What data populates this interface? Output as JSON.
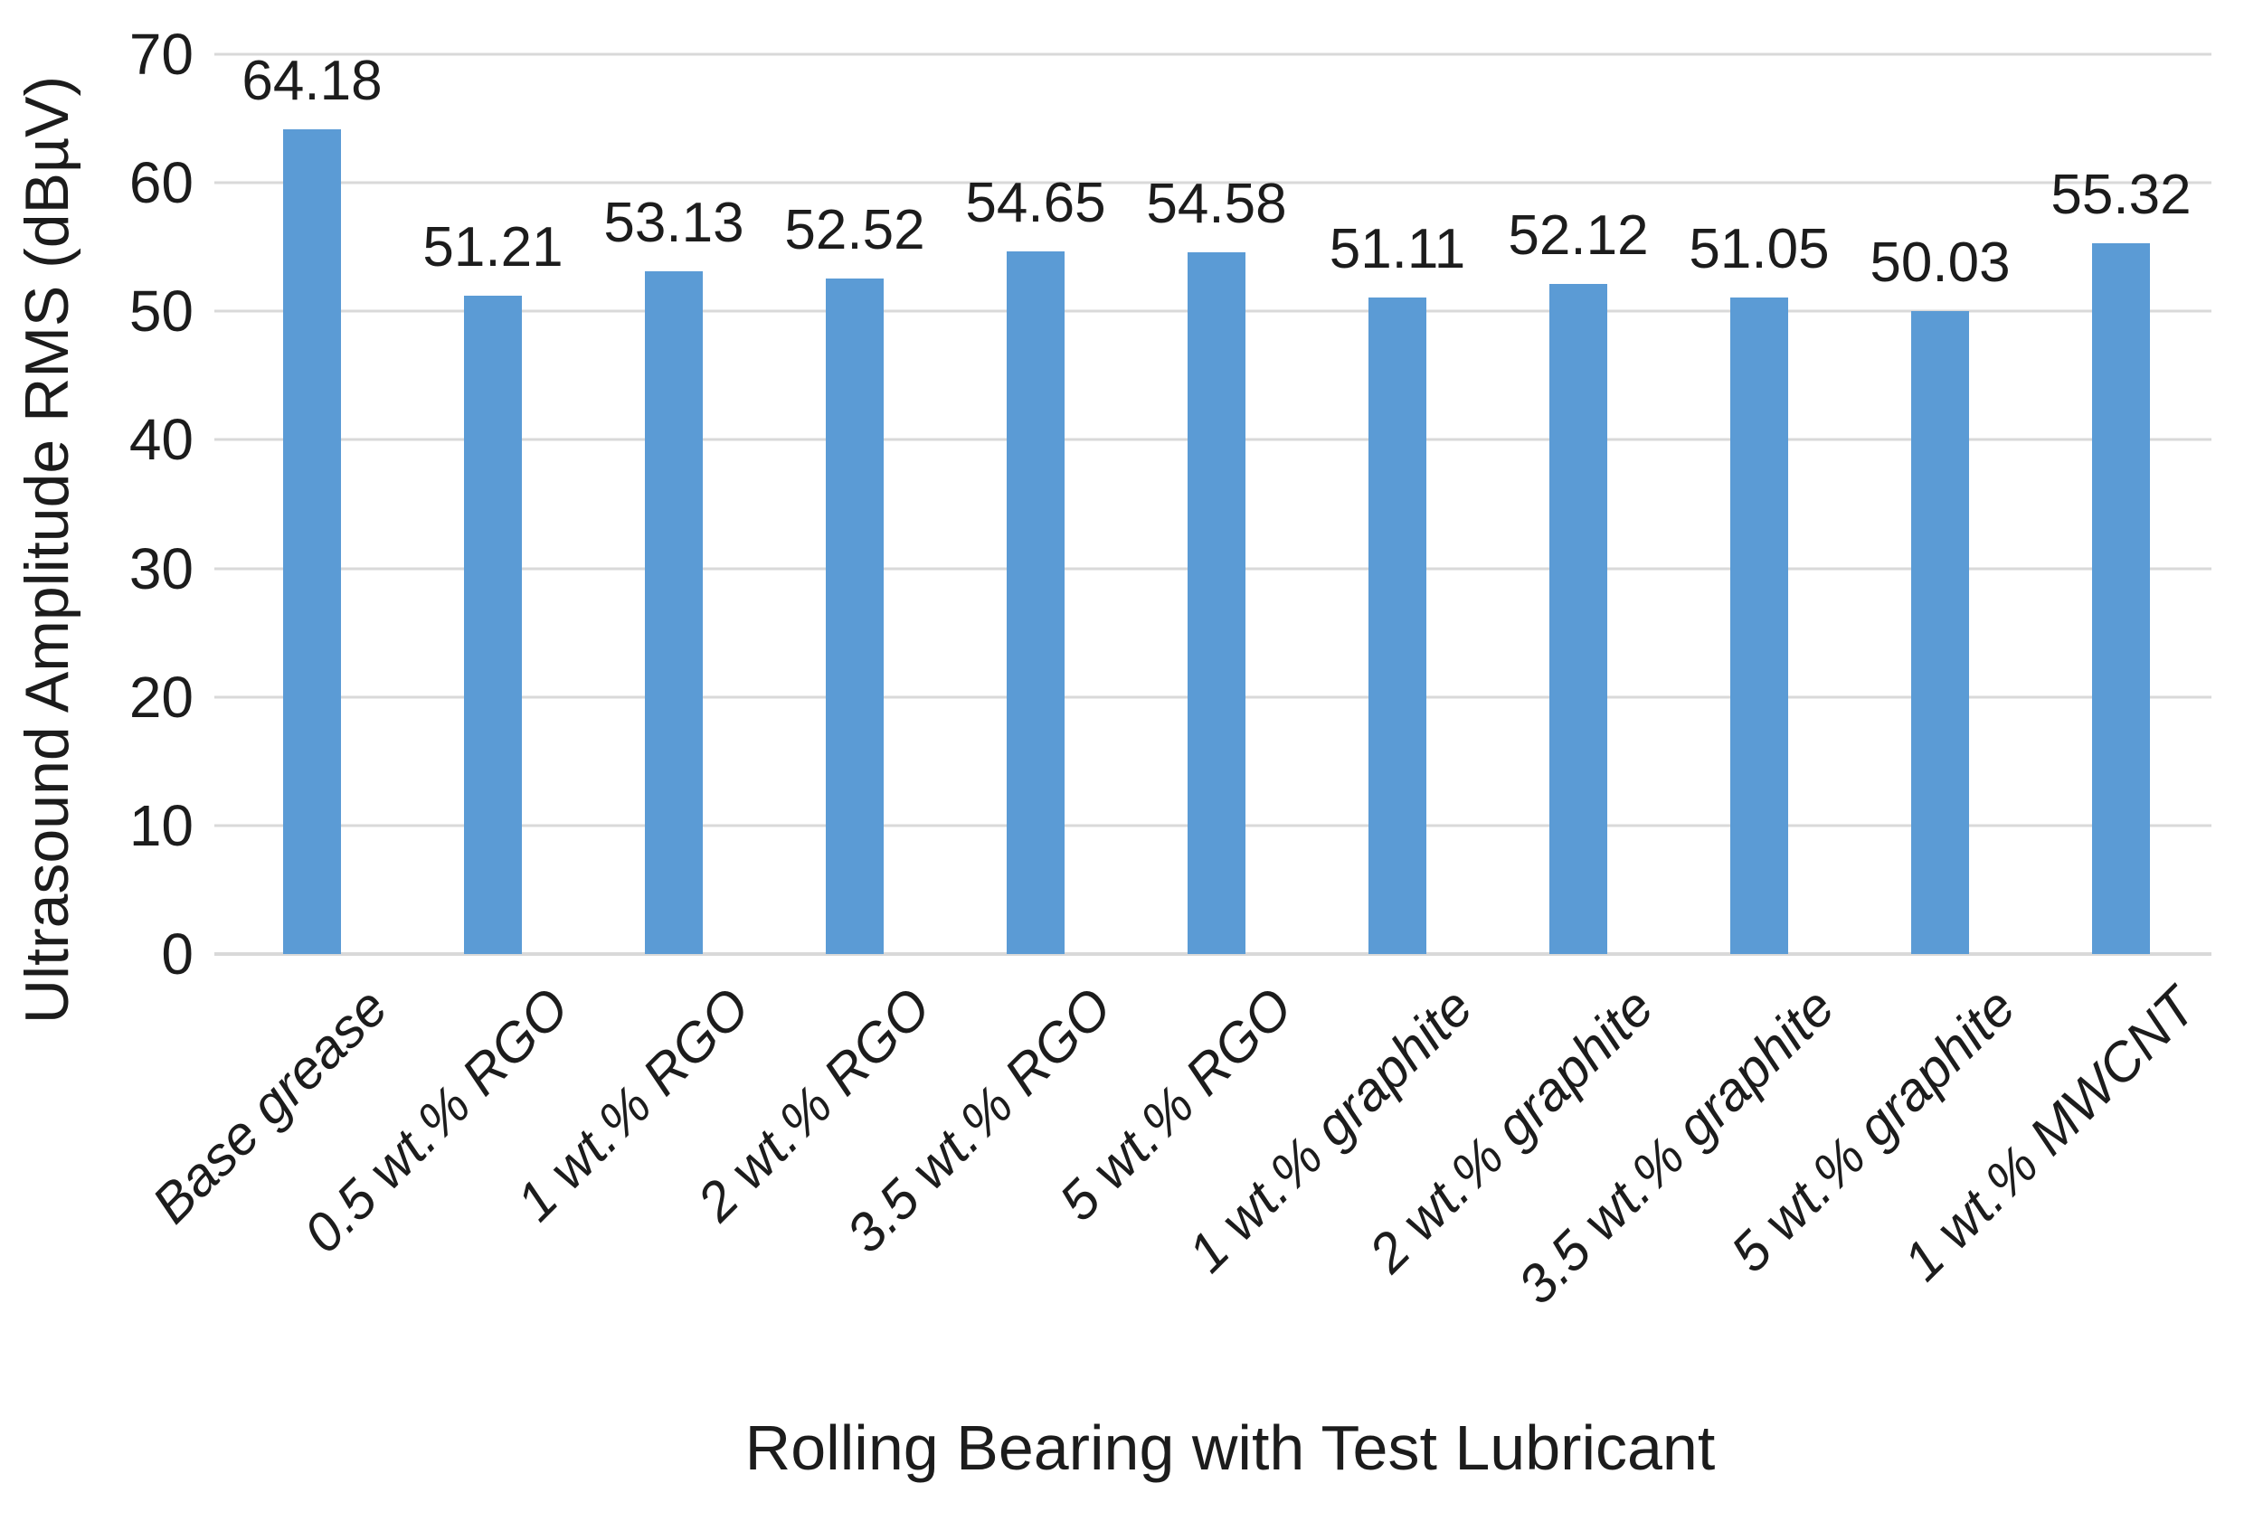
{
  "figure": {
    "background_color": "#ffffff",
    "text_color": "#1c1c1c",
    "bar_color": "#5b9bd5",
    "gridline_color": "#d9d9d9"
  },
  "chart_data": {
    "type": "bar",
    "title": "",
    "xlabel": "Rolling Bearing with Test Lubricant",
    "ylabel": "Ultrasound Amplitude RMS (dBµV)",
    "categories": [
      "Base grease",
      "0.5 wt.% RGO",
      "1 wt.% RGO",
      "2 wt.% RGO",
      "3.5 wt.% RGO",
      "5 wt.% RGO",
      "1 wt.% graphite",
      "2 wt.% graphite",
      "3.5 wt.% graphite",
      "5 wt.% graphite",
      "1 wt.% MWCNT"
    ],
    "values": [
      64.18,
      51.21,
      53.13,
      52.52,
      54.65,
      54.58,
      51.11,
      52.12,
      51.05,
      50.03,
      55.32
    ],
    "data_labels": [
      "64.18",
      "51.21",
      "53.13",
      "52.52",
      "54.65",
      "54.58",
      "51.11",
      "52.12",
      "51.05",
      "50.03",
      "55.32"
    ],
    "ylim": [
      0,
      70
    ],
    "yticks": [
      0,
      10,
      20,
      30,
      40,
      50,
      60,
      70
    ],
    "grid": "horizontal",
    "legend": "none",
    "x_tick_label_rotation_deg": 45,
    "x_tick_label_style": "italic",
    "data_label_position": "outside-end"
  }
}
